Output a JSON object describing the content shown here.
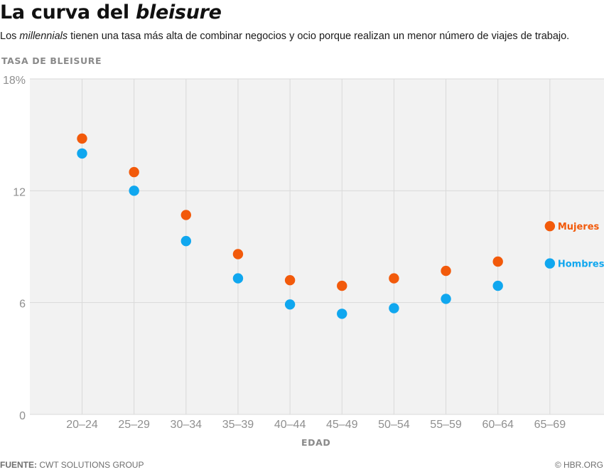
{
  "header": {
    "title_main": "La curva del ",
    "title_italic": "bleisure",
    "subtitle_pre": "Los ",
    "subtitle_italic": "millennials",
    "subtitle_post": " tienen una tasa más alta de combinar negocios y ocio porque realizan un menor número de viajes de trabajo."
  },
  "footer": {
    "source_label": "FUENTE:",
    "source_text": " CWT SOLUTIONS GROUP",
    "credit": "© HBR.ORG"
  },
  "colors": {
    "mujeres": "#f25a0b",
    "hombres": "#10a7ef",
    "grid": "#d9d9d9",
    "plot_bg": "#f2f2f2",
    "tick_text": "#8f8f8f",
    "axis_title": "#8a8a8a"
  },
  "chart_data": {
    "type": "scatter",
    "ylabel": "TASA DE BLEISURE",
    "xlabel": "EDAD",
    "categories": [
      "20–24",
      "25–29",
      "30–34",
      "35–39",
      "40–44",
      "45–49",
      "50–54",
      "55–59",
      "60–64",
      "65–69"
    ],
    "ylim": [
      0,
      18
    ],
    "yticks": [
      0,
      6,
      12,
      18
    ],
    "ytick_labels": [
      "0",
      "6",
      "12",
      "18%"
    ],
    "grid": true,
    "legend": "inline-right",
    "series": [
      {
        "name": "Mujeres",
        "color_key": "mujeres",
        "values": [
          14.8,
          13.0,
          10.7,
          8.6,
          7.2,
          6.9,
          7.3,
          7.7,
          8.2,
          10.1
        ]
      },
      {
        "name": "Hombres",
        "color_key": "hombres",
        "values": [
          14.0,
          12.0,
          9.3,
          7.3,
          5.9,
          5.4,
          5.7,
          6.2,
          6.9,
          8.1
        ]
      }
    ]
  }
}
